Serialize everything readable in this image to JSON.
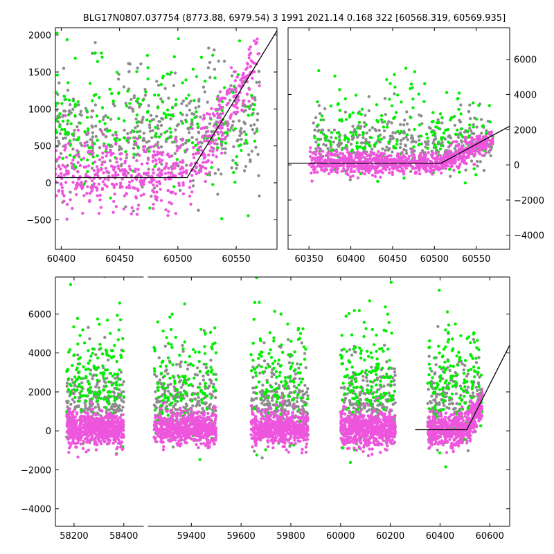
{
  "title": "BLG17N0807.037754 (8773.88, 6979.54)   3 1991 2021.14 0.168 322 [60568.319, 60569.935]",
  "colors": {
    "gray": "#8c8c8c",
    "green": "#00ee00",
    "magenta": "#ee55dd",
    "model": "#000000"
  },
  "chart_data": [
    {
      "type": "scatter",
      "panel": "top-left",
      "xlim": [
        60395,
        60585
      ],
      "ylim": [
        -900,
        2100
      ],
      "xticks": [
        60400,
        60450,
        60500,
        60550
      ],
      "yticks": [
        -500,
        0,
        500,
        1000,
        1500,
        2000
      ],
      "ytick_side": "left",
      "model_line": {
        "x": [
          60395,
          60508,
          60585
        ],
        "y": [
          70,
          70,
          2060
        ]
      },
      "series": [
        {
          "color": "gray",
          "n": 420,
          "xr": [
            60395,
            60570
          ],
          "y_mid": 450,
          "y_sd": 500
        },
        {
          "color": "green",
          "n": 260,
          "xr": [
            60395,
            60570
          ],
          "y_mid": 500,
          "y_sd": 600
        },
        {
          "color": "magenta",
          "n": 600,
          "xr": [
            60395,
            60570
          ],
          "y_mid": 120,
          "y_sd": 230,
          "ramp_start": 60508,
          "ramp_slope": 26
        }
      ]
    },
    {
      "type": "scatter",
      "panel": "top-right",
      "xlim": [
        60325,
        60590
      ],
      "ylim": [
        -4800,
        7800
      ],
      "xticks": [
        60350,
        60400,
        60450,
        60500,
        60550
      ],
      "yticks": [
        -4000,
        -2000,
        0,
        2000,
        4000,
        6000
      ],
      "ytick_side": "right",
      "model_line": {
        "x": [
          60325,
          60508,
          60590
        ],
        "y": [
          100,
          100,
          2200
        ]
      },
      "series": [
        {
          "color": "gray",
          "n": 360,
          "xr": [
            60355,
            60570
          ],
          "y_mid": 700,
          "y_sd": 1100
        },
        {
          "color": "green",
          "n": 220,
          "xr": [
            60355,
            60570
          ],
          "y_mid": 900,
          "y_sd": 1600
        },
        {
          "color": "magenta",
          "n": 900,
          "xr": [
            60350,
            60570
          ],
          "y_mid": 100,
          "y_sd": 300,
          "ramp_start": 60508,
          "ramp_slope": 22
        }
      ]
    },
    {
      "type": "scatter",
      "panel": "bottom",
      "xlim": [
        58125,
        60680
      ],
      "ylim": [
        -4900,
        7900
      ],
      "xticks": [
        58200,
        58400,
        59400,
        59600,
        59800,
        60000,
        60200,
        60400,
        60600
      ],
      "yticks": [
        -4000,
        -2000,
        0,
        2000,
        4000,
        6000
      ],
      "ytick_side": "left",
      "axis_gap": [
        58480,
        59225
      ],
      "model_line": {
        "x": [
          60300,
          60508,
          60680
        ],
        "y": [
          60,
          60,
          4400
        ]
      },
      "series": [
        {
          "color": "gray",
          "n": 1100,
          "clusters": [
            [
              58170,
              58400
            ],
            [
              59250,
              59500
            ],
            [
              59640,
              59870
            ],
            [
              60000,
              60220
            ],
            [
              60350,
              60570
            ]
          ],
          "y_mid": 900,
          "y_sd": 1300
        },
        {
          "color": "green",
          "n": 800,
          "clusters": [
            [
              58170,
              58400
            ],
            [
              59250,
              59500
            ],
            [
              59640,
              59870
            ],
            [
              60000,
              60220
            ],
            [
              60350,
              60570
            ]
          ],
          "y_mid": 1500,
          "y_sd": 2100
        },
        {
          "color": "magenta",
          "n": 3000,
          "clusters": [
            [
              58170,
              58400
            ],
            [
              59250,
              59500
            ],
            [
              59640,
              59870
            ],
            [
              60000,
              60220
            ],
            [
              60350,
              60570
            ]
          ],
          "y_mid": 100,
          "y_sd": 420,
          "ramp_start": 60508,
          "ramp_slope": 24
        }
      ]
    }
  ]
}
